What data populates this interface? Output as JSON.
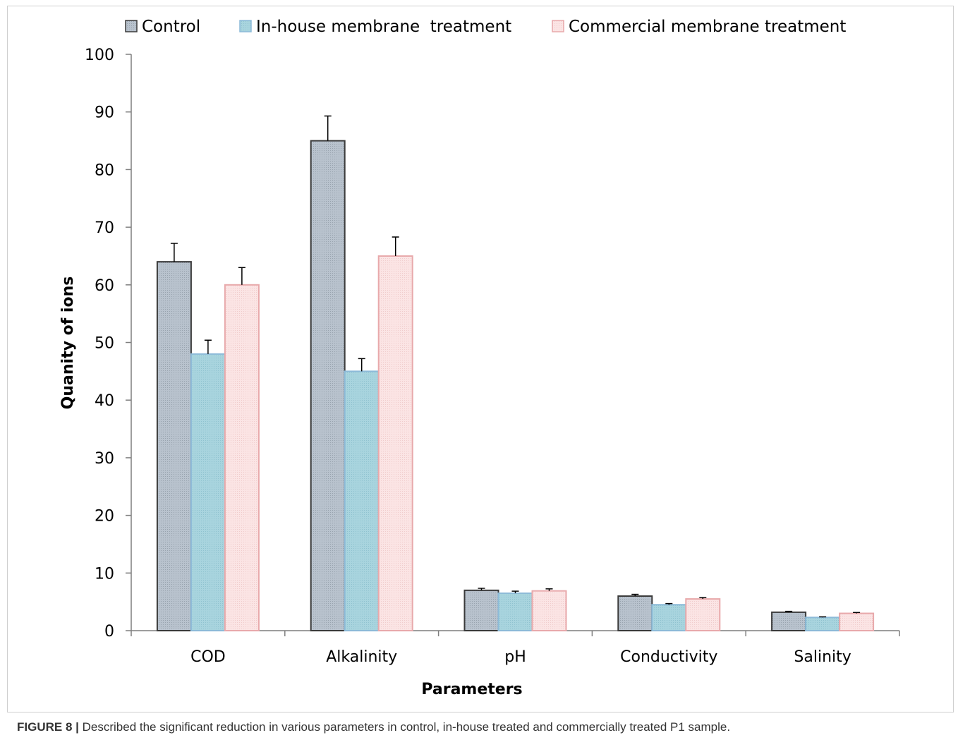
{
  "chart_data": {
    "type": "bar",
    "categories": [
      "COD",
      "Alkalinity",
      "pH",
      "Conductivity",
      "Salinity"
    ],
    "series": [
      {
        "name": "Control",
        "values": [
          64,
          85,
          7,
          6,
          3.2
        ],
        "errors": [
          3.2,
          4.3,
          0.35,
          0.3,
          0.15
        ]
      },
      {
        "name": "In-house membrane  treatment",
        "values": [
          48,
          45,
          6.5,
          4.5,
          2.3
        ],
        "errors": [
          2.4,
          2.2,
          0.35,
          0.2,
          0.1
        ]
      },
      {
        "name": "Commercial membrane treatment",
        "values": [
          60,
          65,
          6.9,
          5.5,
          3.0
        ],
        "errors": [
          3.0,
          3.3,
          0.35,
          0.25,
          0.15
        ]
      }
    ],
    "xlabel": "Parameters",
    "ylabel": "Quanity of ions",
    "ylim": [
      0,
      100
    ],
    "yticks": [
      0,
      10,
      20,
      30,
      40,
      50,
      60,
      70,
      80,
      90,
      100
    ],
    "legend_position": "top",
    "grid": false,
    "colors": {
      "series_fill": [
        "#b8c2cd",
        "#a8d4de",
        "#fbe4e4"
      ],
      "series_stroke": [
        "#3a3a3a",
        "#8cbad8",
        "#e8a9ab"
      ]
    }
  },
  "caption": {
    "label": "FIGURE 8 |",
    "text": " Described the significant reduction in various parameters in control, in-house treated and commercially treated P1 sample."
  }
}
